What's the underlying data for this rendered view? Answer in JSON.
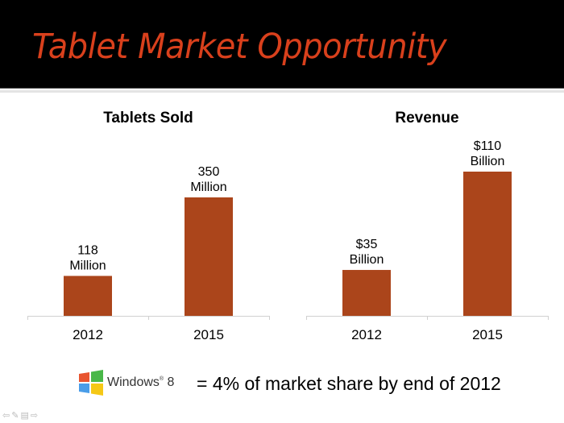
{
  "slide": {
    "title": "Tablet Market Opportunity",
    "footer": {
      "logo_text": "Windows",
      "logo_version": "8",
      "statement": "= 4% of market share by end of 2012"
    },
    "nav": {
      "prev_icon": "arrow-left-icon",
      "pen_icon": "pen-icon",
      "menu_icon": "slide-menu-icon",
      "next_icon": "arrow-right-icon"
    }
  },
  "colors": {
    "bar": "#ab451b",
    "title": "#d9401c",
    "header_bg": "#000000",
    "axis": "#d0d0d0"
  },
  "chart_data": [
    {
      "type": "bar",
      "title": "Tablets Sold",
      "categories": [
        "2012",
        "2015"
      ],
      "values": [
        118,
        350
      ],
      "data_labels": [
        [
          "118",
          "Million"
        ],
        [
          "350",
          "Million"
        ]
      ],
      "unit": "Million",
      "xlabel": "",
      "ylabel": "",
      "ylim": [
        0,
        350
      ],
      "grid": false
    },
    {
      "type": "bar",
      "title": "Revenue",
      "categories": [
        "2012",
        "2015"
      ],
      "values": [
        35,
        110
      ],
      "data_labels": [
        [
          "$35",
          "Billion"
        ],
        [
          "$110",
          "Billion"
        ]
      ],
      "unit": "Billion USD",
      "xlabel": "",
      "ylabel": "",
      "ylim": [
        0,
        110
      ],
      "grid": false
    }
  ]
}
